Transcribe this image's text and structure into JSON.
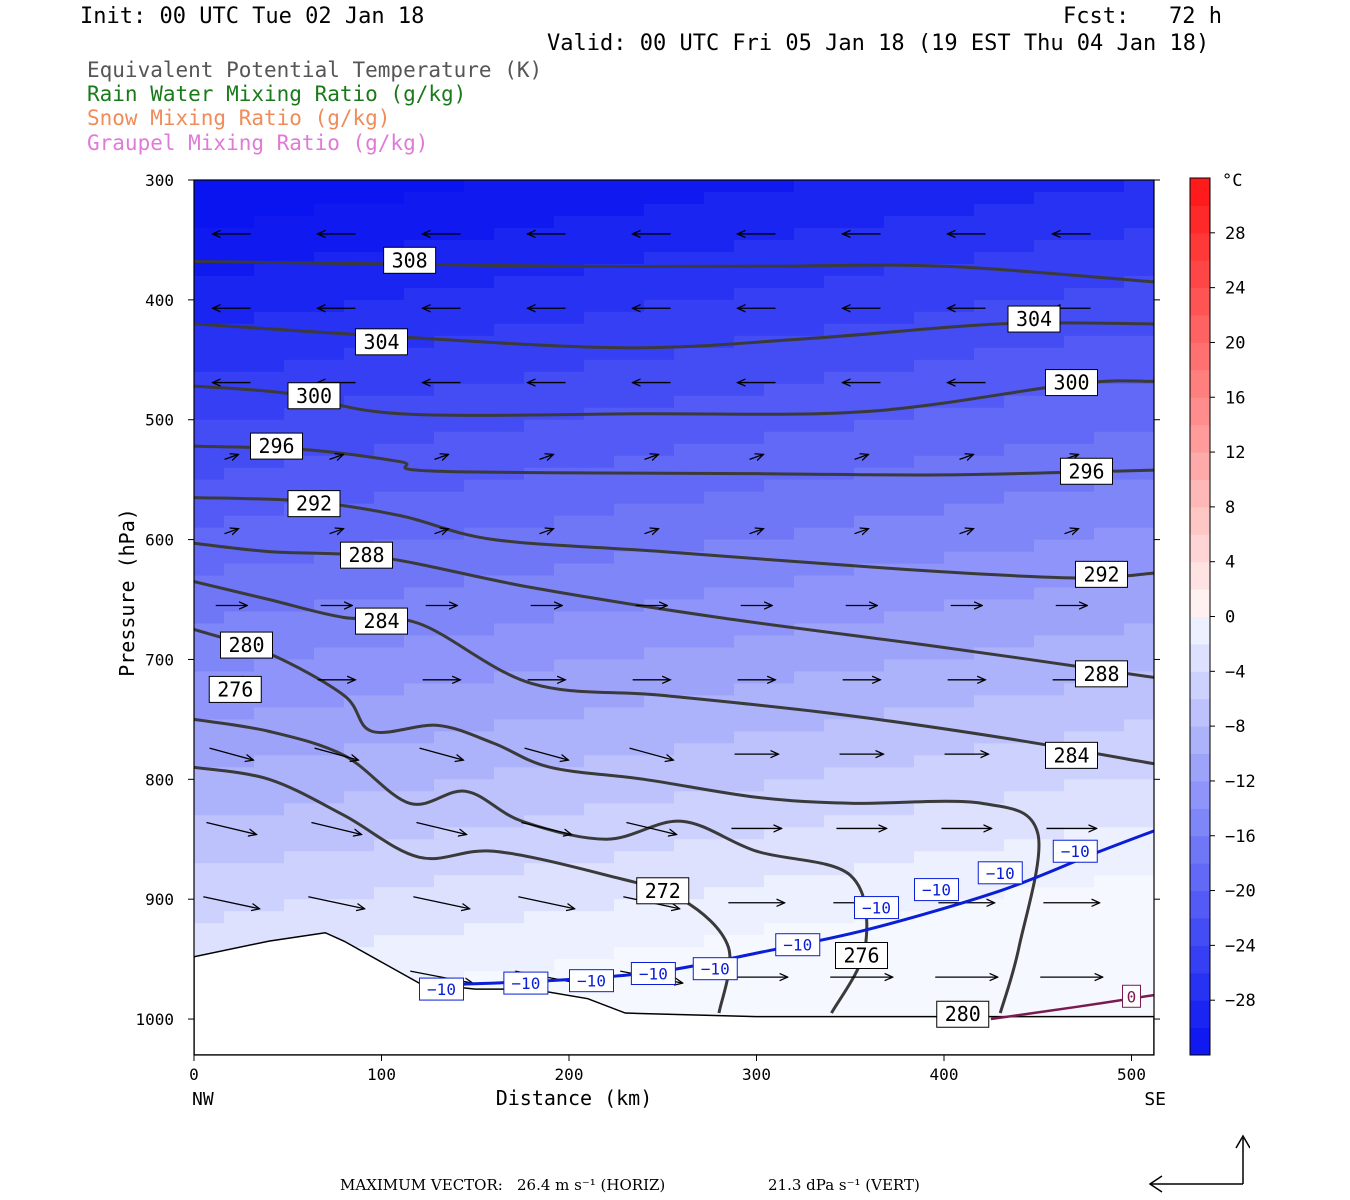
{
  "header": {
    "init": "Init: 00 UTC Tue 02 Jan 18",
    "fcst": "Fcst:   72 h",
    "valid": "Valid: 00 UTC Fri 05 Jan 18 (19 EST Thu 04 Jan 18)"
  },
  "legend": [
    {
      "label": "Equivalent Potential Temperature (K)",
      "color": "#555555"
    },
    {
      "label": "Rain Water Mixing Ratio (g/kg)",
      "color": "#1a7a1a"
    },
    {
      "label": "Snow Mixing Ratio (g/kg)",
      "color": "#f08c5a"
    },
    {
      "label": "Graupel Mixing Ratio (g/kg)",
      "color": "#e07ad8"
    }
  ],
  "chart_data": {
    "type": "contour-cross-section",
    "xlabel": "Distance (km)",
    "ylabel": "Pressure (hPa)",
    "xlim": [
      0,
      512
    ],
    "ylim": [
      1030,
      300
    ],
    "x_ticks": [
      0,
      100,
      200,
      300,
      400,
      500
    ],
    "y_ticks": [
      300,
      400,
      500,
      600,
      700,
      800,
      900,
      1000
    ],
    "x_end_labels": {
      "left": "NW",
      "right": "SE"
    },
    "theta_e_contours": [
      {
        "value": 308,
        "points": [
          [
            0,
            368
          ],
          [
            100,
            370
          ],
          [
            200,
            372
          ],
          [
            300,
            372
          ],
          [
            400,
            372
          ],
          [
            512,
            385
          ]
        ],
        "label_at": [
          115,
          367
        ]
      },
      {
        "value": 304,
        "points": [
          [
            0,
            420
          ],
          [
            100,
            430
          ],
          [
            230,
            440
          ],
          [
            330,
            432
          ],
          [
            430,
            420
          ],
          [
            512,
            420
          ]
        ],
        "label_at": [
          100,
          435
        ]
      },
      {
        "value": 304,
        "points": [],
        "label_at": [
          448,
          416
        ]
      },
      {
        "value": 300,
        "points": [
          [
            0,
            472
          ],
          [
            50,
            478
          ],
          [
            110,
            495
          ],
          [
            240,
            495
          ],
          [
            360,
            493
          ],
          [
            470,
            470
          ],
          [
            512,
            468
          ]
        ],
        "label_at": [
          64,
          480
        ]
      },
      {
        "value": 300,
        "points": [],
        "label_at": [
          468,
          469
        ]
      },
      {
        "value": 296,
        "points": [
          [
            0,
            522
          ],
          [
            60,
            525
          ],
          [
            110,
            535
          ],
          [
            130,
            543
          ],
          [
            300,
            545
          ],
          [
            400,
            546
          ],
          [
            512,
            542
          ]
        ],
        "label_at": [
          44,
          522
        ]
      },
      {
        "value": 296,
        "points": [],
        "label_at": [
          476,
          543
        ]
      },
      {
        "value": 292,
        "points": [
          [
            0,
            565
          ],
          [
            60,
            568
          ],
          [
            110,
            580
          ],
          [
            160,
            600
          ],
          [
            250,
            610
          ],
          [
            380,
            625
          ],
          [
            470,
            632
          ],
          [
            512,
            628
          ]
        ],
        "label_at": [
          64,
          570
        ]
      },
      {
        "value": 292,
        "points": [],
        "label_at": [
          484,
          629
        ]
      },
      {
        "value": 288,
        "points": [
          [
            0,
            603
          ],
          [
            40,
            610
          ],
          [
            100,
            615
          ],
          [
            180,
            640
          ],
          [
            280,
            665
          ],
          [
            400,
            690
          ],
          [
            512,
            715
          ]
        ],
        "label_at": [
          92,
          613
        ]
      },
      {
        "value": 288,
        "points": [],
        "label_at": [
          484,
          712
        ]
      },
      {
        "value": 284,
        "points": [
          [
            0,
            635
          ],
          [
            40,
            650
          ],
          [
            80,
            665
          ],
          [
            120,
            670
          ],
          [
            180,
            720
          ],
          [
            250,
            730
          ],
          [
            340,
            745
          ],
          [
            430,
            765
          ],
          [
            512,
            787
          ]
        ],
        "label_at": [
          100,
          668
        ]
      },
      {
        "value": 284,
        "points": [],
        "label_at": [
          468,
          780
        ]
      },
      {
        "value": 280,
        "points": [
          [
            0,
            675
          ],
          [
            40,
            695
          ],
          [
            80,
            730
          ],
          [
            95,
            760
          ],
          [
            130,
            755
          ],
          [
            160,
            770
          ],
          [
            190,
            790
          ],
          [
            240,
            800
          ],
          [
            300,
            815
          ],
          [
            350,
            820
          ],
          [
            420,
            820
          ],
          [
            450,
            845
          ],
          [
            440,
            940
          ],
          [
            430,
            995
          ]
        ],
        "label_at": [
          28,
          688
        ]
      },
      {
        "value": 280,
        "points": [],
        "label_at": [
          410,
          996
        ]
      },
      {
        "value": 276,
        "points": [
          [
            0,
            750
          ],
          [
            40,
            760
          ],
          [
            80,
            780
          ],
          [
            115,
            820
          ],
          [
            145,
            810
          ],
          [
            175,
            835
          ],
          [
            220,
            850
          ],
          [
            260,
            835
          ],
          [
            300,
            860
          ],
          [
            350,
            880
          ],
          [
            358,
            940
          ],
          [
            340,
            995
          ]
        ],
        "label_at": [
          22,
          725
        ]
      },
      {
        "value": 276,
        "points": [],
        "label_at": [
          356,
          947
        ]
      },
      {
        "value": 272,
        "points": [
          [
            0,
            790
          ],
          [
            40,
            800
          ],
          [
            80,
            830
          ],
          [
            120,
            865
          ],
          [
            160,
            860
          ],
          [
            220,
            880
          ],
          [
            260,
            900
          ],
          [
            285,
            940
          ],
          [
            280,
            995
          ]
        ],
        "label_at": [
          250,
          893
        ]
      }
    ],
    "temperature_contour": {
      "value": -10,
      "points": [
        [
          120,
          972
        ],
        [
          160,
          970
        ],
        [
          200,
          967
        ],
        [
          250,
          960
        ],
        [
          300,
          945
        ],
        [
          360,
          925
        ],
        [
          430,
          893
        ],
        [
          480,
          862
        ],
        [
          512,
          843
        ]
      ],
      "labels_at": [
        [
          132,
          975
        ],
        [
          177,
          970
        ],
        [
          212,
          968
        ],
        [
          245,
          962
        ],
        [
          278,
          958
        ],
        [
          322,
          938
        ],
        [
          364,
          907
        ],
        [
          396,
          892
        ],
        [
          430,
          878
        ],
        [
          470,
          860
        ]
      ]
    },
    "zero_contour": {
      "value": 0,
      "points": [
        [
          425,
          1000
        ],
        [
          470,
          990
        ],
        [
          512,
          980
        ]
      ],
      "label_at": [
        500,
        981
      ]
    },
    "terrain_pressure": [
      [
        0,
        948
      ],
      [
        40,
        935
      ],
      [
        70,
        928
      ],
      [
        80,
        935
      ],
      [
        120,
        970
      ],
      [
        150,
        975
      ],
      [
        180,
        975
      ],
      [
        210,
        983
      ],
      [
        230,
        995
      ],
      [
        300,
        998
      ],
      [
        512,
        998
      ]
    ],
    "colorbar": {
      "unit": "°C",
      "tick_labels": [
        "28",
        "24",
        "20",
        "16",
        "12",
        "8",
        "4",
        "0",
        "−4",
        "−8",
        "−12",
        "−16",
        "−20",
        "−24",
        "−28"
      ],
      "tick_values": [
        28,
        24,
        20,
        16,
        12,
        8,
        4,
        0,
        -4,
        -8,
        -12,
        -16,
        -20,
        -24,
        -28
      ],
      "range": [
        -32,
        32
      ]
    }
  },
  "footer": {
    "label": "MAXIMUM VECTOR:",
    "horiz": "26.4 m s⁻¹ (HORIZ)",
    "vert": "21.3 dPa s⁻¹ (VERT)"
  }
}
